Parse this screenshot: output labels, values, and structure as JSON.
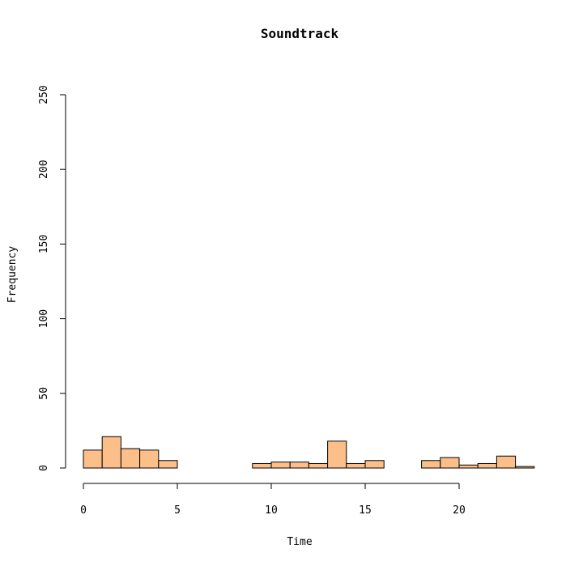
{
  "chart_data": {
    "type": "bar",
    "title": "Soundtrack",
    "xlabel": "Time",
    "ylabel": "Frequency",
    "xlim": [
      0,
      24
    ],
    "ylim": [
      0,
      250
    ],
    "x_ticks": [
      0,
      5,
      10,
      15,
      20
    ],
    "y_ticks": [
      0,
      50,
      100,
      150,
      200,
      250
    ],
    "bin_width": 1,
    "bins": [
      {
        "start": 0,
        "count": 12
      },
      {
        "start": 1,
        "count": 21
      },
      {
        "start": 2,
        "count": 13
      },
      {
        "start": 3,
        "count": 12
      },
      {
        "start": 4,
        "count": 5
      },
      {
        "start": 5,
        "count": 0
      },
      {
        "start": 6,
        "count": 0
      },
      {
        "start": 7,
        "count": 0
      },
      {
        "start": 8,
        "count": 0
      },
      {
        "start": 9,
        "count": 3
      },
      {
        "start": 10,
        "count": 4
      },
      {
        "start": 11,
        "count": 4
      },
      {
        "start": 12,
        "count": 3
      },
      {
        "start": 13,
        "count": 18
      },
      {
        "start": 14,
        "count": 3
      },
      {
        "start": 15,
        "count": 5
      },
      {
        "start": 16,
        "count": 0
      },
      {
        "start": 17,
        "count": 0
      },
      {
        "start": 18,
        "count": 5
      },
      {
        "start": 19,
        "count": 7
      },
      {
        "start": 20,
        "count": 2
      },
      {
        "start": 21,
        "count": 3
      },
      {
        "start": 22,
        "count": 8
      },
      {
        "start": 23,
        "count": 1
      }
    ],
    "bar_color": "#FDBF8A",
    "bar_stroke": "#000000",
    "grid": false,
    "legend": "none"
  }
}
